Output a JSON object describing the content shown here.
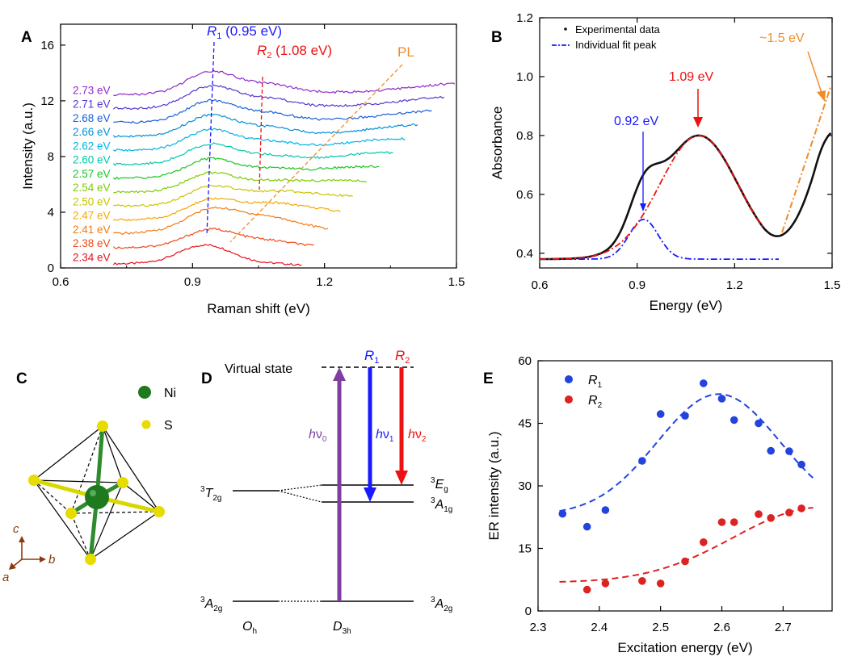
{
  "panels": {
    "A": {
      "letter": "A"
    },
    "B": {
      "letter": "B"
    },
    "C": {
      "letter": "C"
    },
    "D": {
      "letter": "D"
    },
    "E": {
      "letter": "E"
    }
  },
  "chart_data": [
    {
      "id": "A",
      "type": "line",
      "xlabel": "Raman shift (eV)",
      "ylabel": "Intensity (a.u.)",
      "xlim": [
        0.6,
        1.5
      ],
      "ylim": [
        0,
        17.5
      ],
      "xticks": [
        "0.6",
        "0.9",
        "1.2",
        "1.5"
      ],
      "yticks": [
        "0",
        "4",
        "8",
        "12",
        "16"
      ],
      "series": [
        {
          "name": "2.34 eV",
          "laser_eV": 2.34,
          "color": "#e8101a",
          "offset": 0.2
        },
        {
          "name": "2.38 eV",
          "laser_eV": 2.38,
          "color": "#f04a18",
          "offset": 1.2
        },
        {
          "name": "2.41 eV",
          "laser_eV": 2.41,
          "color": "#f57a10",
          "offset": 2.2
        },
        {
          "name": "2.47 eV",
          "laser_eV": 2.47,
          "color": "#f5a800",
          "offset": 3.2
        },
        {
          "name": "2.50 eV",
          "laser_eV": 2.5,
          "color": "#c9c400",
          "offset": 4.2
        },
        {
          "name": "2.54 eV",
          "laser_eV": 2.54,
          "color": "#7ccb00",
          "offset": 5.2
        },
        {
          "name": "2.57 eV",
          "laser_eV": 2.57,
          "color": "#14c820",
          "offset": 6.2
        },
        {
          "name": "2.60 eV",
          "laser_eV": 2.6,
          "color": "#00c8a8",
          "offset": 7.2
        },
        {
          "name": "2.62 eV",
          "laser_eV": 2.62,
          "color": "#00b4e6",
          "offset": 8.2
        },
        {
          "name": "2.66 eV",
          "laser_eV": 2.66,
          "color": "#0090dc",
          "offset": 9.2
        },
        {
          "name": "2.68 eV",
          "laser_eV": 2.68,
          "color": "#1a60d8",
          "offset": 10.2
        },
        {
          "name": "2.71 eV",
          "laser_eV": 2.71,
          "color": "#5a36cf",
          "offset": 11.2
        },
        {
          "name": "2.73 eV",
          "laser_eV": 2.73,
          "color": "#8e28c8",
          "offset": 12.2
        }
      ],
      "annotations": [
        {
          "label": "R",
          "sub": "1",
          "suffix": " (0.95 eV)",
          "color": "#1a1aff"
        },
        {
          "label": "R",
          "sub": "2",
          "suffix": " (1.08 eV)",
          "color": "#ee1111"
        },
        {
          "label": "PL",
          "color": "#f28c28"
        }
      ]
    },
    {
      "id": "B",
      "type": "line",
      "xlabel": "Energy (eV)",
      "ylabel": "Absorbance",
      "xlim": [
        0.6,
        1.5
      ],
      "ylim": [
        0.35,
        1.2
      ],
      "xticks": [
        "0.6",
        "0.9",
        "1.2",
        "1.5"
      ],
      "yticks": [
        "0.4",
        "0.6",
        "0.8",
        "1.0",
        "1.2"
      ],
      "legend": [
        "Experimental data",
        "Individual fit peak"
      ],
      "legend_position": "top-left",
      "fit_peaks": [
        {
          "center": 0.92,
          "height": 0.135,
          "width": 0.045
        },
        {
          "center": 1.09,
          "height": 0.42,
          "width": 0.12
        }
      ],
      "baseline": 0.38,
      "annotations": [
        {
          "text": "0.92 eV",
          "color": "#1a1aff"
        },
        {
          "text": "1.09 eV",
          "color": "#ee1111"
        },
        {
          "text": "~1.5 eV",
          "color": "#f28c28"
        }
      ]
    },
    {
      "id": "E",
      "type": "scatter",
      "xlabel": "Excitation energy (eV)",
      "ylabel": "ER intensity (a.u.)",
      "xlim": [
        2.3,
        2.78
      ],
      "ylim": [
        0,
        60
      ],
      "xticks": [
        "2.3",
        "2.4",
        "2.5",
        "2.6",
        "2.7"
      ],
      "yticks": [
        "0",
        "15",
        "30",
        "45",
        "60"
      ],
      "legend_position": "top-left",
      "series": [
        {
          "name": "R",
          "sub": "1",
          "color": "#2244dd",
          "x": [
            2.34,
            2.38,
            2.41,
            2.47,
            2.5,
            2.54,
            2.57,
            2.6,
            2.62,
            2.66,
            2.68,
            2.71,
            2.73
          ],
          "y": [
            23.3,
            20.2,
            24.2,
            36.0,
            47.2,
            46.8,
            54.6,
            50.9,
            45.8,
            45.0,
            38.4,
            38.3,
            35.1
          ],
          "fit_curve": {
            "center": 2.595,
            "width": 0.1,
            "height": 29,
            "offset": 23
          }
        },
        {
          "name": "R",
          "sub": "2",
          "color": "#dd2222",
          "x": [
            2.38,
            2.41,
            2.47,
            2.5,
            2.54,
            2.57,
            2.6,
            2.62,
            2.66,
            2.68,
            2.71,
            2.73
          ],
          "y": [
            5.1,
            6.6,
            7.2,
            6.6,
            11.9,
            16.5,
            21.3,
            21.3,
            23.2,
            22.3,
            23.6,
            24.6
          ],
          "fit_curve": {
            "center": 2.76,
            "width": 0.14,
            "height": 18,
            "offset": 6.8
          }
        }
      ]
    }
  ],
  "crystal": {
    "legend": [
      {
        "label": "Ni",
        "color": "#1f7a1f"
      },
      {
        "label": "S",
        "color": "#e6dc00"
      }
    ],
    "axes": [
      {
        "label": "c"
      },
      {
        "label": "b"
      },
      {
        "label": "a"
      }
    ],
    "axis_color": "#8b3a0e"
  },
  "energy_diagram": {
    "virtual_state_label": "Virtual state",
    "arrow_labels": [
      {
        "h": "h",
        "nu": "ν",
        "sub": "0",
        "color": "#7f3fa0"
      },
      {
        "h": "h",
        "nu": "ν",
        "sub": "1",
        "color": "#1a1aff"
      },
      {
        "h": "h",
        "nu": "ν",
        "sub": "2",
        "color": "#ee1111"
      }
    ],
    "top_labels": [
      {
        "label": "R",
        "sub": "1",
        "color": "#1a1aff"
      },
      {
        "label": "R",
        "sub": "2",
        "color": "#ee1111"
      }
    ],
    "left_levels": [
      {
        "pre": "3",
        "main": "T",
        "sub": "2g"
      },
      {
        "pre": "3",
        "main": "A",
        "sub": "2g"
      }
    ],
    "right_levels": [
      {
        "pre": "3",
        "main": "E",
        "sub": "g"
      },
      {
        "pre": "3",
        "main": "A",
        "sub": "1g"
      },
      {
        "pre": "3",
        "main": "A",
        "sub": "2g"
      }
    ],
    "symmetry_labels": [
      {
        "main": "O",
        "sub": "h"
      },
      {
        "main": "D",
        "sub": "3h"
      }
    ]
  }
}
